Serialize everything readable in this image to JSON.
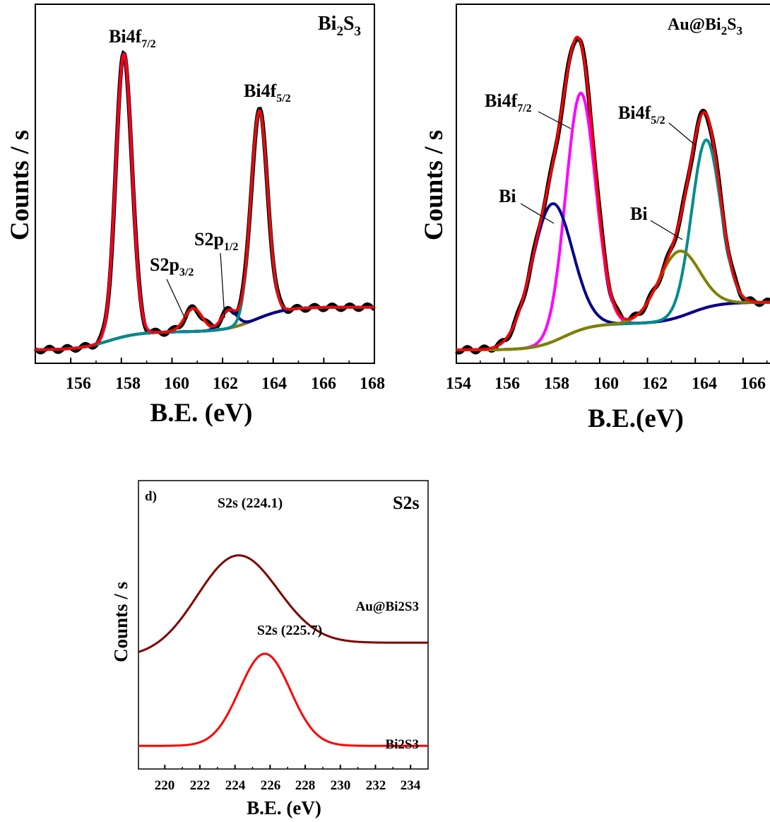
{
  "chart_data": [
    {
      "type": "line",
      "panel_label": "",
      "title_parts": [
        "Bi",
        "2",
        "S",
        "3"
      ],
      "xlabel": "B.E. (eV)",
      "ylabel": "Counts / s",
      "xlim": [
        154.6,
        168
      ],
      "ylim": [
        0,
        1
      ],
      "xticks": [
        "156",
        "158",
        "160",
        "162",
        "164",
        "166",
        "168"
      ],
      "annotations": [
        {
          "text": "Bi4f",
          "sub": "7/2"
        },
        {
          "text": "Bi4f",
          "sub": "5/2"
        },
        {
          "text": "S2p",
          "sub": "1/2"
        },
        {
          "text": "S2p",
          "sub": "3/2"
        }
      ],
      "peaks": [
        {
          "name": "Bi4f7/2",
          "center": 158.1,
          "height": 0.86,
          "width": 0.32,
          "color": "#ff00ff"
        },
        {
          "name": "S2p3/2",
          "center": 160.85,
          "height": 0.07,
          "width": 0.35,
          "color": "#808000"
        },
        {
          "name": "S2p1/2",
          "center": 162.25,
          "height": 0.055,
          "width": 0.3,
          "color": "#00008b"
        },
        {
          "name": "Bi4f5/2",
          "center": 163.45,
          "height": 0.63,
          "width": 0.33,
          "color": "#008b8b"
        }
      ],
      "background": {
        "start": 0.0,
        "end": 0.13,
        "steps": [
          {
            "center": 157.5,
            "amount": 0.055
          },
          {
            "center": 163.3,
            "amount": 0.075
          }
        ]
      },
      "series_colors": {
        "raw": "#000000",
        "envelope": "#ff0000",
        "background": "#00008b"
      }
    },
    {
      "type": "line",
      "panel_label": "",
      "title_parts": [
        "Au@Bi",
        "2",
        "S",
        "3"
      ],
      "xlabel": "B.E.(eV)",
      "ylabel": "Counts / s",
      "xlim": [
        154,
        167.6
      ],
      "ylim": [
        0,
        1
      ],
      "xticks": [
        "154",
        "156",
        "158",
        "160",
        "162",
        "164",
        "166"
      ],
      "annotations": [
        {
          "text": "Bi4f",
          "sub": "7/2"
        },
        {
          "text": "Bi4f",
          "sub": "5/2"
        },
        {
          "text": "Bi",
          "sub": ""
        },
        {
          "text": "Bi",
          "sub": ""
        }
      ],
      "peaks": [
        {
          "name": "Bi4f7/2",
          "center": 159.2,
          "height": 0.72,
          "width": 0.62,
          "color": "#ff00ff"
        },
        {
          "name": "Bi",
          "center": 158.0,
          "height": 0.42,
          "width": 0.85,
          "color": "#00008b"
        },
        {
          "name": "Bi4f5/2",
          "center": 164.45,
          "height": 0.51,
          "width": 0.6,
          "color": "#008b8b"
        },
        {
          "name": "Bi",
          "center": 163.3,
          "height": 0.2,
          "width": 0.85,
          "color": "#808000"
        }
      ],
      "background": {
        "start": 0.0,
        "end": 0.145,
        "steps": [
          {
            "center": 158.5,
            "amount": 0.08
          },
          {
            "center": 163.8,
            "amount": 0.065
          }
        ]
      },
      "series_colors": {
        "raw": "#000000",
        "envelope": "#ff0000",
        "background": "#808000"
      }
    },
    {
      "type": "line",
      "panel_label": "d)",
      "title_parts": [
        "S2s"
      ],
      "xlabel": "B.E. (eV)",
      "ylabel": "Counts / s",
      "xlim": [
        218.5,
        235
      ],
      "ylim": [
        0,
        1
      ],
      "xticks": [
        "220",
        "222",
        "224",
        "226",
        "228",
        "230",
        "232",
        "234"
      ],
      "series": [
        {
          "name": "Au@Bi2S3",
          "peak_label": "S2s (224.1)",
          "center": 224.1,
          "width": 2.3,
          "height": 0.38,
          "right_base": 0.44,
          "left_base": 0.38,
          "color": "#800000"
        },
        {
          "name": "Bi2S3",
          "peak_label": "S2s (225.7)",
          "center": 225.7,
          "width": 1.45,
          "height": 0.37,
          "right_base": 0.025,
          "left_base": 0.025,
          "color": "#ff0000"
        }
      ]
    }
  ]
}
